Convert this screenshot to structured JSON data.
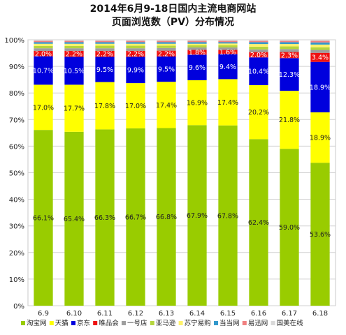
{
  "chart_data": {
    "type": "bar",
    "stacked": true,
    "normalized": true,
    "title_lines": [
      "2014年6月9-18日国内主流电商网站",
      "页面浏览数（PV）分布情况"
    ],
    "categories": [
      "6.9",
      "6.10",
      "6.11",
      "6.12",
      "6.13",
      "6.14",
      "6.15",
      "6.16",
      "6.17",
      "6.18"
    ],
    "y_ticks": [
      "0%",
      "10%",
      "20%",
      "30%",
      "40%",
      "50%",
      "60%",
      "70%",
      "80%",
      "90%",
      "100%"
    ],
    "ylim": [
      0,
      100
    ],
    "grid": true,
    "legend_position": "bottom",
    "series": [
      {
        "name": "淘宝网",
        "color": "#99CC00",
        "values": [
          66.1,
          65.4,
          66.3,
          66.7,
          66.8,
          67.9,
          67.8,
          62.4,
          59.0,
          53.6
        ],
        "labels": [
          "66.1%",
          "65.4%",
          "66.3%",
          "66.7%",
          "66.8%",
          "67.9%",
          "67.8%",
          "62.4%",
          "59.0%",
          "53.6%"
        ]
      },
      {
        "name": "天猫",
        "color": "#FFFF00",
        "values": [
          17.0,
          17.7,
          17.8,
          17.0,
          17.4,
          16.9,
          17.4,
          20.2,
          21.8,
          18.9
        ],
        "labels": [
          "17.0%",
          "17.7%",
          "17.8%",
          "17.0%",
          "17.4%",
          "16.9%",
          "17.4%",
          "20.2%",
          "21.8%",
          "18.9%"
        ]
      },
      {
        "name": "京东",
        "color": "#0000DD",
        "values": [
          10.7,
          10.5,
          9.5,
          9.9,
          9.5,
          9.6,
          9.4,
          10.4,
          12.3,
          18.9
        ],
        "labels": [
          "10.7%",
          "10.5%",
          "9.5%",
          "9.9%",
          "9.5%",
          "9.6%",
          "9.4%",
          "10.4%",
          "12.3%",
          "18.9%"
        ]
      },
      {
        "name": "唯品会",
        "color": "#EE1111",
        "values": [
          2.0,
          2.2,
          2.2,
          2.2,
          2.2,
          1.8,
          1.6,
          2.0,
          2.3,
          3.4
        ],
        "labels": [
          "2.0%",
          "2.2%",
          "2.2%",
          "2.2%",
          "2.2%",
          "1.8%",
          "1.6%",
          "2.0%",
          "2.3%",
          "3.4%"
        ]
      },
      {
        "name": "一号店",
        "color": "#9E9E9E",
        "values": [
          1.0,
          1.0,
          1.0,
          1.0,
          1.0,
          0.9,
          0.9,
          1.0,
          1.1,
          1.1
        ]
      },
      {
        "name": "亚马逊",
        "color": "#B5D63D",
        "values": [
          0.9,
          0.9,
          1.0,
          1.0,
          0.9,
          0.8,
          0.8,
          1.0,
          1.0,
          1.0
        ]
      },
      {
        "name": "苏宁易购",
        "color": "#FFF36B",
        "values": [
          0.8,
          0.8,
          0.7,
          0.7,
          0.7,
          0.6,
          0.7,
          1.0,
          0.9,
          1.0
        ]
      },
      {
        "name": "当当网",
        "color": "#3399CC",
        "values": [
          0.6,
          0.6,
          0.6,
          0.6,
          0.6,
          0.6,
          0.5,
          0.7,
          0.7,
          0.8
        ]
      },
      {
        "name": "易迅网",
        "color": "#F08080",
        "values": [
          0.5,
          0.5,
          0.5,
          0.5,
          0.5,
          0.5,
          0.5,
          0.5,
          0.5,
          0.6
        ]
      },
      {
        "name": "国美在线",
        "color": "#D9D9D9",
        "values": [
          0.4,
          0.4,
          0.4,
          0.4,
          0.4,
          0.4,
          0.4,
          0.4,
          0.4,
          0.4
        ]
      }
    ]
  }
}
